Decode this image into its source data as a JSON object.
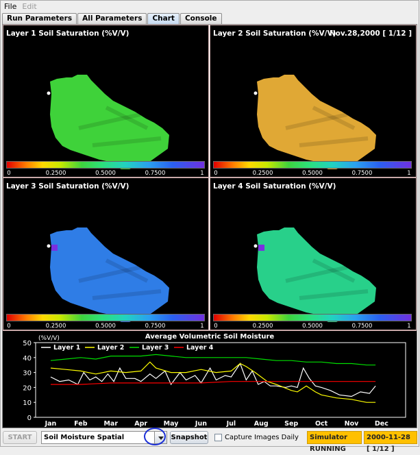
{
  "menu": {
    "file": "File",
    "edit": "Edit"
  },
  "tabs": [
    "Run Parameters",
    "All Parameters",
    "Chart",
    "Console"
  ],
  "active_tab": "Chart",
  "maps": [
    {
      "title": "Layer 1 Soil Saturation (%V/V)",
      "fill": "#3fd23a"
    },
    {
      "title": "Layer 2 Soil Saturation (%V/V)",
      "fill": "#e0a835",
      "date": "Nov.28,2000 [ 1/12 ]"
    },
    {
      "title": "Layer 3 Soil Saturation (%V/V)",
      "fill": "#2f7de6"
    },
    {
      "title": "Layer 4 Soil Saturation (%V/V)",
      "fill": "#28d08a"
    }
  ],
  "colorbar_ticks": [
    "0",
    "0.2500",
    "0.5000",
    "0.7500",
    "1"
  ],
  "chart_data": {
    "type": "line",
    "title": "Average Volumetric Soil Moisture",
    "ylabel": "(%V/V)",
    "xlabel": "",
    "ylim": [
      0,
      50
    ],
    "yticks": [
      "0",
      "10",
      "20",
      "30",
      "40",
      "50"
    ],
    "xticks": [
      "Jan",
      "Feb",
      "Mar",
      "Apr",
      "May",
      "Jun",
      "Jul",
      "Aug",
      "Sep",
      "Oct",
      "Nov",
      "Dec"
    ],
    "legend_placement": "top",
    "series": [
      {
        "name": "Layer 1",
        "color": "#ffffff",
        "x": [
          0,
          0.3,
          0.6,
          0.9,
          1.1,
          1.3,
          1.5,
          1.7,
          1.9,
          2.1,
          2.3,
          2.5,
          2.8,
          3.0,
          3.3,
          3.5,
          3.8,
          4.0,
          4.3,
          4.5,
          4.8,
          5.0,
          5.3,
          5.5,
          5.8,
          6.0,
          6.3,
          6.5,
          6.7,
          6.9,
          7.1,
          7.3,
          7.5,
          7.8,
          8.0,
          8.2,
          8.4,
          8.6,
          8.8,
          9.0,
          9.3,
          9.6,
          10.0,
          10.3,
          10.6,
          10.8
        ],
        "values": [
          27,
          24,
          25,
          22,
          30,
          25,
          27,
          24,
          29,
          24,
          33,
          26,
          26,
          24,
          29,
          26,
          31,
          22,
          30,
          25,
          28,
          23,
          33,
          25,
          28,
          27,
          36,
          25,
          31,
          22,
          24,
          21,
          21,
          20,
          21,
          20,
          33,
          26,
          21,
          20,
          18,
          15,
          14,
          17,
          16,
          21
        ]
      },
      {
        "name": "Layer 2",
        "color": "#ffff00",
        "x": [
          0,
          0.5,
          1.0,
          1.5,
          2.0,
          2.5,
          3.0,
          3.3,
          3.5,
          4.0,
          4.5,
          5.0,
          5.5,
          6.0,
          6.3,
          6.5,
          6.8,
          7.2,
          7.5,
          8.0,
          8.2,
          8.5,
          8.8,
          9.0,
          9.5,
          10.0,
          10.5,
          10.8
        ],
        "values": [
          33,
          32,
          31,
          29,
          31,
          30,
          31,
          37,
          33,
          30,
          30,
          32,
          30,
          31,
          36,
          34,
          30,
          24,
          22,
          18,
          17,
          21,
          17,
          15,
          13,
          12,
          10,
          10
        ]
      },
      {
        "name": "Layer 3",
        "color": "#00e000",
        "x": [
          0,
          0.5,
          1.0,
          1.5,
          2.0,
          2.5,
          3.0,
          3.5,
          4.0,
          4.5,
          5.0,
          5.5,
          6.0,
          6.5,
          7.0,
          7.5,
          8.0,
          8.5,
          9.0,
          9.5,
          10.0,
          10.5,
          10.8
        ],
        "values": [
          38,
          39,
          40,
          39,
          41,
          41,
          41,
          42,
          41,
          40,
          40,
          40,
          40,
          40,
          39,
          38,
          38,
          37,
          37,
          36,
          36,
          35,
          35
        ]
      },
      {
        "name": "Layer 4",
        "color": "#ff0000",
        "x": [
          0,
          1,
          2,
          3,
          4,
          5,
          6,
          7,
          8,
          9,
          10,
          10.8
        ],
        "values": [
          22,
          22,
          23,
          23,
          23,
          23,
          24,
          24,
          24,
          24,
          24,
          24
        ]
      }
    ]
  },
  "bottom": {
    "start": "START",
    "combo_value": "Soil Moisture Spatial",
    "snapshot": "Snapshot",
    "capture": "Capture Images Daily",
    "status": "Simulator RUNNING",
    "date_status": "2000-11-28 [ 1/12 ]"
  }
}
